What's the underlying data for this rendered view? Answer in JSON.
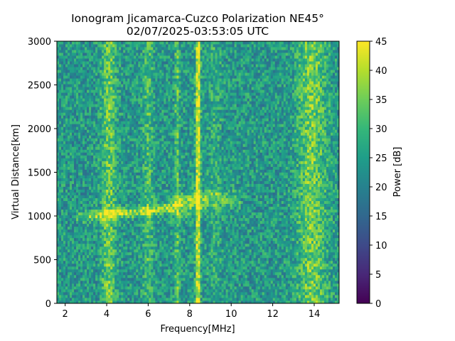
{
  "chart_data": {
    "type": "heatmap",
    "title": "Ionogram Jicamarca-Cuzco Polarization NE45°",
    "subtitle": "02/07/2025-03:53:05 UTC",
    "xlabel": "Frequency[MHz]",
    "ylabel": "Virtual Distance[km]",
    "xlim": [
      1.6,
      15.2
    ],
    "ylim": [
      0,
      3000
    ],
    "xticks": [
      "2",
      "4",
      "6",
      "8",
      "10",
      "12",
      "14"
    ],
    "yticks": [
      "0",
      "500",
      "1000",
      "1500",
      "2000",
      "2500",
      "3000"
    ],
    "colorbar": {
      "label": "Power [dB]",
      "range": [
        0,
        45
      ],
      "ticks": [
        "0",
        "5",
        "10",
        "15",
        "20",
        "25",
        "30",
        "35",
        "40",
        "45"
      ],
      "colormap": "viridis"
    },
    "background_power_db": 24,
    "vertical_bands": [
      {
        "freq_mhz": 4.1,
        "width_mhz": 0.35,
        "power_db": 34
      },
      {
        "freq_mhz": 6.0,
        "width_mhz": 0.25,
        "power_db": 31
      },
      {
        "freq_mhz": 9.2,
        "width_mhz": 0.3,
        "power_db": 28
      },
      {
        "freq_mhz": 13.9,
        "width_mhz": 0.7,
        "power_db": 35
      },
      {
        "freq_mhz": 7.4,
        "width_mhz": 0.05,
        "power_db": 33
      },
      {
        "freq_mhz": 8.4,
        "width_mhz": 0.06,
        "power_db": 45
      }
    ],
    "echo_trace": [
      {
        "freq_mhz": 2.5,
        "distance_km": 980,
        "power_db": 32
      },
      {
        "freq_mhz": 4.0,
        "distance_km": 1020,
        "power_db": 42
      },
      {
        "freq_mhz": 6.0,
        "distance_km": 1060,
        "power_db": 40
      },
      {
        "freq_mhz": 8.0,
        "distance_km": 1150,
        "power_db": 40
      },
      {
        "freq_mhz": 9.0,
        "distance_km": 1200,
        "power_db": 34
      },
      {
        "freq_mhz": 10.5,
        "distance_km": 1200,
        "power_db": 30
      }
    ]
  }
}
